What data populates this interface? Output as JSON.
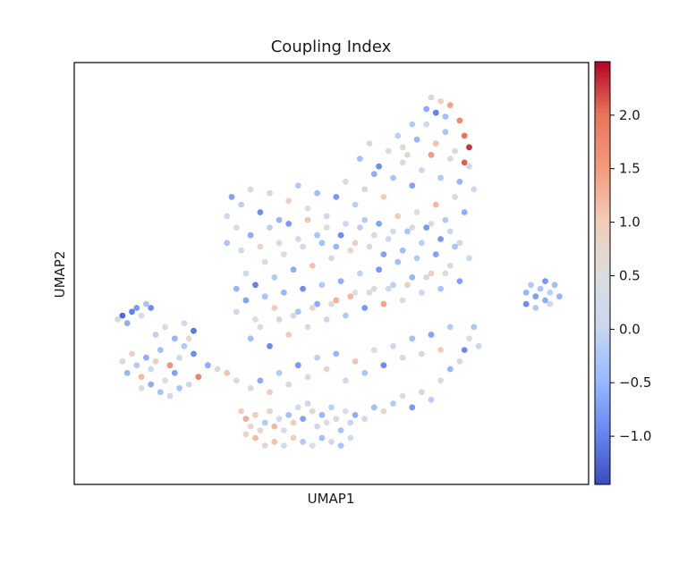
{
  "chart_data": {
    "type": "scatter",
    "title": "Coupling Index",
    "xlabel": "UMAP1",
    "ylabel": "UMAP2",
    "show_axis_ticks": false,
    "grid": false,
    "colormap": "coolwarm",
    "colorbar": {
      "range": [
        -1.45,
        2.5
      ],
      "ticks": [
        -1.0,
        -0.5,
        0.0,
        0.5,
        1.0,
        1.5,
        2.0
      ],
      "tick_labels": [
        "−1.0",
        "−0.5",
        "0.0",
        "0.5",
        "1.0",
        "1.5",
        "2.0"
      ],
      "stops": [
        "#3b4cc0",
        "#6788ee",
        "#9abbff",
        "#c9d7f0",
        "#dcdddd",
        "#f2cbb7",
        "#f49a7b",
        "#e7745b",
        "#b40426"
      ]
    },
    "xlim": [
      0,
      1
    ],
    "ylim": [
      0,
      1
    ],
    "points": [
      [
        0.05,
        0.38,
        0.3
      ],
      [
        0.06,
        0.39,
        -1.2
      ],
      [
        0.07,
        0.37,
        -0.6
      ],
      [
        0.08,
        0.4,
        -1.0
      ],
      [
        0.09,
        0.41,
        -0.8
      ],
      [
        0.1,
        0.39,
        0.4
      ],
      [
        0.11,
        0.42,
        -0.3
      ],
      [
        0.12,
        0.41,
        -0.9
      ],
      [
        0.06,
        0.27,
        0.2
      ],
      [
        0.07,
        0.24,
        -0.5
      ],
      [
        0.08,
        0.29,
        0.8
      ],
      [
        0.09,
        0.26,
        -0.2
      ],
      [
        0.1,
        0.23,
        1.2
      ],
      [
        0.11,
        0.28,
        -0.6
      ],
      [
        0.12,
        0.25,
        0.1
      ],
      [
        0.13,
        0.27,
        0.9
      ],
      [
        0.14,
        0.3,
        -0.4
      ],
      [
        0.15,
        0.22,
        0.5
      ],
      [
        0.16,
        0.26,
        1.6
      ],
      [
        0.17,
        0.24,
        -0.7
      ],
      [
        0.18,
        0.28,
        0.3
      ],
      [
        0.19,
        0.31,
        -0.2
      ],
      [
        0.2,
        0.33,
        0.6
      ],
      [
        0.21,
        0.29,
        -0.9
      ],
      [
        0.13,
        0.34,
        -0.1
      ],
      [
        0.15,
        0.36,
        0.7
      ],
      [
        0.17,
        0.33,
        -0.5
      ],
      [
        0.19,
        0.37,
        0.2
      ],
      [
        0.21,
        0.35,
        -1.1
      ],
      [
        0.22,
        0.23,
        1.8
      ],
      [
        0.2,
        0.21,
        0.1
      ],
      [
        0.18,
        0.2,
        -0.3
      ],
      [
        0.24,
        0.26,
        -0.6
      ],
      [
        0.26,
        0.25,
        0.3
      ],
      [
        0.28,
        0.24,
        1.1
      ],
      [
        0.3,
        0.22,
        0.4
      ],
      [
        0.31,
        0.14,
        0.9
      ],
      [
        0.32,
        0.12,
        1.3
      ],
      [
        0.33,
        0.1,
        0.7
      ],
      [
        0.34,
        0.13,
        1.0
      ],
      [
        0.35,
        0.09,
        0.6
      ],
      [
        0.36,
        0.11,
        -0.2
      ],
      [
        0.37,
        0.14,
        0.8
      ],
      [
        0.38,
        0.1,
        1.2
      ],
      [
        0.39,
        0.12,
        0.2
      ],
      [
        0.4,
        0.09,
        0.5
      ],
      [
        0.41,
        0.13,
        -0.4
      ],
      [
        0.42,
        0.11,
        0.9
      ],
      [
        0.43,
        0.15,
        0.3
      ],
      [
        0.44,
        0.12,
        -0.7
      ],
      [
        0.45,
        0.16,
        0.1
      ],
      [
        0.46,
        0.14,
        0.6
      ],
      [
        0.47,
        0.1,
        0.2
      ],
      [
        0.48,
        0.13,
        -0.5
      ],
      [
        0.49,
        0.11,
        0.4
      ],
      [
        0.5,
        0.15,
        -0.1
      ],
      [
        0.51,
        0.12,
        0.3
      ],
      [
        0.52,
        0.09,
        -0.3
      ],
      [
        0.53,
        0.14,
        0.5
      ],
      [
        0.54,
        0.11,
        0.0
      ],
      [
        0.55,
        0.13,
        -0.6
      ],
      [
        0.57,
        0.12,
        0.2
      ],
      [
        0.59,
        0.15,
        -0.4
      ],
      [
        0.61,
        0.14,
        0.7
      ],
      [
        0.63,
        0.16,
        -0.2
      ],
      [
        0.65,
        0.18,
        0.4
      ],
      [
        0.67,
        0.15,
        -0.8
      ],
      [
        0.69,
        0.19,
        0.3
      ],
      [
        0.71,
        0.17,
        -0.1
      ],
      [
        0.73,
        0.22,
        0.6
      ],
      [
        0.75,
        0.25,
        -0.5
      ],
      [
        0.77,
        0.27,
        0.2
      ],
      [
        0.78,
        0.3,
        -0.9
      ],
      [
        0.79,
        0.33,
        0.5
      ],
      [
        0.8,
        0.36,
        -0.3
      ],
      [
        0.81,
        0.31,
        0.1
      ],
      [
        0.33,
        0.2,
        0.4
      ],
      [
        0.35,
        0.22,
        -0.6
      ],
      [
        0.37,
        0.19,
        0.9
      ],
      [
        0.39,
        0.24,
        -0.2
      ],
      [
        0.41,
        0.21,
        0.3
      ],
      [
        0.43,
        0.26,
        -0.8
      ],
      [
        0.45,
        0.23,
        0.6
      ],
      [
        0.47,
        0.28,
        -0.1
      ],
      [
        0.49,
        0.25,
        0.8
      ],
      [
        0.51,
        0.29,
        -0.5
      ],
      [
        0.53,
        0.22,
        0.2
      ],
      [
        0.55,
        0.27,
        1.1
      ],
      [
        0.57,
        0.24,
        -0.3
      ],
      [
        0.59,
        0.3,
        0.5
      ],
      [
        0.61,
        0.26,
        -0.9
      ],
      [
        0.63,
        0.31,
        0.1
      ],
      [
        0.65,
        0.28,
        0.7
      ],
      [
        0.67,
        0.33,
        -0.4
      ],
      [
        0.69,
        0.29,
        0.3
      ],
      [
        0.71,
        0.34,
        -0.7
      ],
      [
        0.73,
        0.3,
        0.9
      ],
      [
        0.75,
        0.36,
        -0.2
      ],
      [
        0.33,
        0.33,
        -0.4
      ],
      [
        0.35,
        0.36,
        0.6
      ],
      [
        0.37,
        0.31,
        -0.9
      ],
      [
        0.39,
        0.38,
        0.2
      ],
      [
        0.41,
        0.34,
        1.0
      ],
      [
        0.43,
        0.4,
        -0.3
      ],
      [
        0.45,
        0.36,
        0.4
      ],
      [
        0.47,
        0.42,
        -0.6
      ],
      [
        0.49,
        0.38,
        0.1
      ],
      [
        0.51,
        0.43,
        1.3
      ],
      [
        0.53,
        0.39,
        -0.2
      ],
      [
        0.55,
        0.45,
        0.5
      ],
      [
        0.57,
        0.41,
        -0.8
      ],
      [
        0.59,
        0.46,
        0.3
      ],
      [
        0.61,
        0.42,
        1.4
      ],
      [
        0.63,
        0.47,
        -0.1
      ],
      [
        0.65,
        0.43,
        0.6
      ],
      [
        0.67,
        0.49,
        -0.5
      ],
      [
        0.69,
        0.45,
        0.2
      ],
      [
        0.71,
        0.5,
        0.9
      ],
      [
        0.73,
        0.46,
        -0.3
      ],
      [
        0.75,
        0.52,
        0.4
      ],
      [
        0.77,
        0.48,
        -0.7
      ],
      [
        0.79,
        0.54,
        0.1
      ],
      [
        0.3,
        0.46,
        -0.5
      ],
      [
        0.32,
        0.5,
        0.3
      ],
      [
        0.34,
        0.47,
        -1.0
      ],
      [
        0.36,
        0.53,
        0.7
      ],
      [
        0.38,
        0.49,
        -0.2
      ],
      [
        0.4,
        0.55,
        0.5
      ],
      [
        0.42,
        0.51,
        -0.6
      ],
      [
        0.44,
        0.57,
        0.2
      ],
      [
        0.46,
        0.52,
        1.1
      ],
      [
        0.48,
        0.58,
        -0.4
      ],
      [
        0.5,
        0.54,
        0.3
      ],
      [
        0.52,
        0.6,
        -0.9
      ],
      [
        0.54,
        0.56,
        0.6
      ],
      [
        0.56,
        0.62,
        -0.1
      ],
      [
        0.58,
        0.57,
        0.4
      ],
      [
        0.6,
        0.63,
        -0.7
      ],
      [
        0.62,
        0.59,
        0.2
      ],
      [
        0.64,
        0.65,
        0.9
      ],
      [
        0.66,
        0.61,
        -0.3
      ],
      [
        0.68,
        0.66,
        0.5
      ],
      [
        0.7,
        0.62,
        -0.8
      ],
      [
        0.72,
        0.68,
        1.2
      ],
      [
        0.74,
        0.64,
        -0.2
      ],
      [
        0.76,
        0.7,
        0.3
      ],
      [
        0.78,
        0.66,
        -0.6
      ],
      [
        0.8,
        0.72,
        0.1
      ],
      [
        0.28,
        0.58,
        -0.3
      ],
      [
        0.28,
        0.65,
        0.2
      ],
      [
        0.29,
        0.7,
        -0.7
      ],
      [
        0.3,
        0.62,
        0.6
      ],
      [
        0.31,
        0.68,
        -0.1
      ],
      [
        0.33,
        0.72,
        0.4
      ],
      [
        0.35,
        0.66,
        -0.9
      ],
      [
        0.37,
        0.71,
        0.3
      ],
      [
        0.39,
        0.64,
        -0.5
      ],
      [
        0.41,
        0.69,
        0.8
      ],
      [
        0.43,
        0.73,
        -0.2
      ],
      [
        0.45,
        0.67,
        0.5
      ],
      [
        0.47,
        0.71,
        -0.4
      ],
      [
        0.49,
        0.65,
        0.2
      ],
      [
        0.51,
        0.7,
        -0.8
      ],
      [
        0.53,
        0.74,
        0.6
      ],
      [
        0.55,
        0.68,
        -0.1
      ],
      [
        0.57,
        0.72,
        0.3
      ],
      [
        0.59,
        0.76,
        -0.6
      ],
      [
        0.61,
        0.7,
        1.0
      ],
      [
        0.63,
        0.75,
        -0.3
      ],
      [
        0.65,
        0.79,
        0.4
      ],
      [
        0.67,
        0.73,
        -0.7
      ],
      [
        0.69,
        0.77,
        0.1
      ],
      [
        0.71,
        0.81,
        1.5
      ],
      [
        0.73,
        0.75,
        -0.2
      ],
      [
        0.75,
        0.8,
        0.6
      ],
      [
        0.77,
        0.74,
        -0.5
      ],
      [
        0.79,
        0.78,
        0.2
      ],
      [
        0.56,
        0.8,
        -0.4
      ],
      [
        0.58,
        0.84,
        0.3
      ],
      [
        0.6,
        0.78,
        -0.9
      ],
      [
        0.62,
        0.82,
        0.5
      ],
      [
        0.64,
        0.86,
        -0.1
      ],
      [
        0.66,
        0.81,
        0.7
      ],
      [
        0.68,
        0.85,
        -0.5
      ],
      [
        0.7,
        0.89,
        0.2
      ],
      [
        0.72,
        0.84,
        1.1
      ],
      [
        0.74,
        0.87,
        -0.3
      ],
      [
        0.76,
        0.82,
        0.4
      ],
      [
        0.77,
        0.9,
        1.7
      ],
      [
        0.78,
        0.86,
        2.0
      ],
      [
        0.79,
        0.83,
        2.3
      ],
      [
        0.78,
        0.79,
        2.1
      ],
      [
        0.7,
        0.93,
        -0.6
      ],
      [
        0.71,
        0.96,
        0.3
      ],
      [
        0.72,
        0.92,
        -1.0
      ],
      [
        0.73,
        0.95,
        0.8
      ],
      [
        0.74,
        0.91,
        -0.4
      ],
      [
        0.75,
        0.94,
        1.4
      ],
      [
        0.67,
        0.89,
        -0.2
      ],
      [
        0.65,
        0.83,
        0.6
      ],
      [
        0.3,
        0.4,
        0.2
      ],
      [
        0.32,
        0.43,
        -0.7
      ],
      [
        0.34,
        0.38,
        0.5
      ],
      [
        0.36,
        0.44,
        -0.3
      ],
      [
        0.38,
        0.41,
        1.0
      ],
      [
        0.4,
        0.45,
        -0.5
      ],
      [
        0.42,
        0.39,
        0.3
      ],
      [
        0.44,
        0.46,
        -0.9
      ],
      [
        0.46,
        0.41,
        0.7
      ],
      [
        0.48,
        0.47,
        -0.2
      ],
      [
        0.5,
        0.42,
        0.4
      ],
      [
        0.52,
        0.48,
        -0.6
      ],
      [
        0.54,
        0.44,
        1.2
      ],
      [
        0.56,
        0.5,
        -0.1
      ],
      [
        0.58,
        0.45,
        0.5
      ],
      [
        0.6,
        0.51,
        -0.8
      ],
      [
        0.62,
        0.46,
        0.2
      ],
      [
        0.64,
        0.53,
        -0.4
      ],
      [
        0.66,
        0.47,
        0.9
      ],
      [
        0.68,
        0.54,
        -0.2
      ],
      [
        0.7,
        0.49,
        0.3
      ],
      [
        0.72,
        0.55,
        -0.7
      ],
      [
        0.74,
        0.5,
        0.6
      ],
      [
        0.76,
        0.57,
        -0.3
      ],
      [
        0.31,
        0.56,
        0.3
      ],
      [
        0.33,
        0.6,
        -0.6
      ],
      [
        0.35,
        0.57,
        0.8
      ],
      [
        0.37,
        0.62,
        -0.1
      ],
      [
        0.39,
        0.58,
        0.4
      ],
      [
        0.41,
        0.63,
        -0.8
      ],
      [
        0.43,
        0.59,
        0.2
      ],
      [
        0.45,
        0.64,
        1.1
      ],
      [
        0.47,
        0.6,
        -0.3
      ],
      [
        0.49,
        0.62,
        0.5
      ],
      [
        0.51,
        0.57,
        -0.5
      ],
      [
        0.53,
        0.63,
        0.1
      ],
      [
        0.55,
        0.58,
        0.9
      ],
      [
        0.57,
        0.64,
        -0.2
      ],
      [
        0.59,
        0.6,
        0.6
      ],
      [
        0.61,
        0.55,
        -0.7
      ],
      [
        0.63,
        0.61,
        0.3
      ],
      [
        0.65,
        0.56,
        -0.4
      ],
      [
        0.67,
        0.62,
        0.7
      ],
      [
        0.69,
        0.58,
        -0.1
      ],
      [
        0.71,
        0.63,
        0.4
      ],
      [
        0.73,
        0.59,
        -0.8
      ],
      [
        0.75,
        0.61,
        0.2
      ],
      [
        0.77,
        0.58,
        0.8
      ],
      [
        0.91,
        0.45,
        -0.5
      ],
      [
        0.92,
        0.47,
        -0.2
      ],
      [
        0.93,
        0.44,
        -0.7
      ],
      [
        0.94,
        0.46,
        -0.3
      ],
      [
        0.95,
        0.43,
        -0.6
      ],
      [
        0.96,
        0.45,
        -0.1
      ],
      [
        0.97,
        0.47,
        -0.4
      ],
      [
        0.95,
        0.48,
        -0.8
      ],
      [
        0.91,
        0.42,
        -0.9
      ],
      [
        0.93,
        0.41,
        -0.2
      ],
      [
        0.96,
        0.42,
        0.1
      ],
      [
        0.98,
        0.44,
        -0.5
      ],
      [
        0.14,
        0.19,
        -0.3
      ],
      [
        0.16,
        0.18,
        0.2
      ],
      [
        0.12,
        0.21,
        -0.6
      ],
      [
        0.1,
        0.2,
        0.4
      ],
      [
        0.36,
        0.05,
        0.7
      ],
      [
        0.38,
        0.06,
        1.1
      ],
      [
        0.4,
        0.05,
        0.4
      ],
      [
        0.42,
        0.07,
        0.9
      ],
      [
        0.44,
        0.06,
        -0.2
      ],
      [
        0.46,
        0.05,
        0.5
      ],
      [
        0.34,
        0.07,
        1.2
      ],
      [
        0.32,
        0.08,
        0.8
      ],
      [
        0.48,
        0.07,
        -0.4
      ],
      [
        0.5,
        0.06,
        0.3
      ],
      [
        0.52,
        0.05,
        -0.3
      ],
      [
        0.54,
        0.07,
        0.2
      ]
    ]
  }
}
